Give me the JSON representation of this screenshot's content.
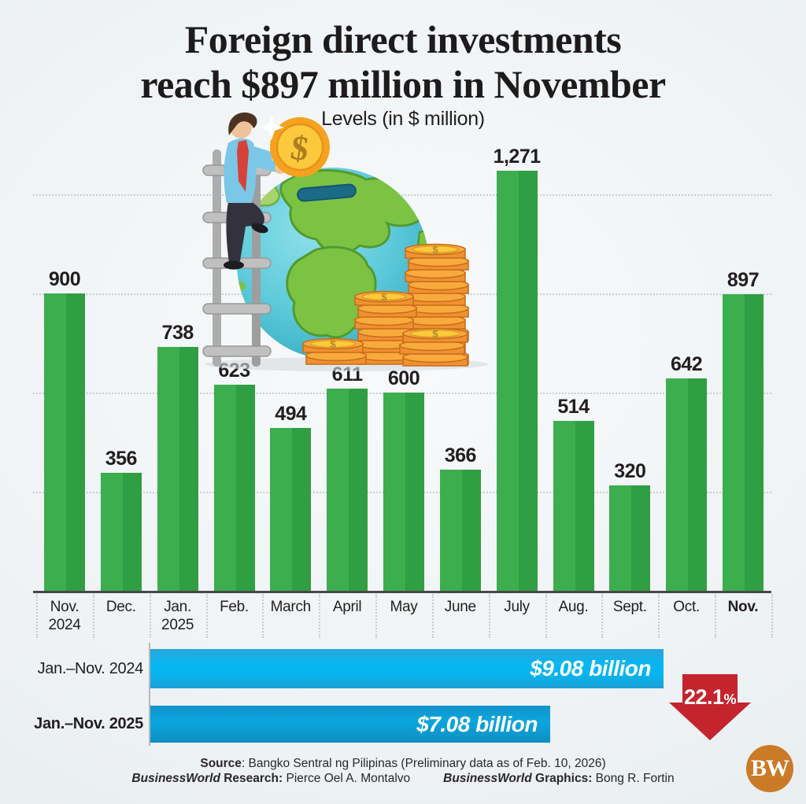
{
  "header": {
    "title": "Foreign direct investments\nreach $897 million in November",
    "subtitle": "Levels (in $ million)"
  },
  "chart_data": [
    {
      "type": "bar",
      "title": "Foreign direct investments reach $897 million in November",
      "unit_label": "Levels (in $ million)",
      "categories": [
        "Nov. 2024",
        "Dec.",
        "Jan. 2025",
        "Feb.",
        "March",
        "April",
        "May",
        "June",
        "July",
        "Aug.",
        "Sept.",
        "Oct.",
        "Nov."
      ],
      "category_display": [
        "Nov.\n2024",
        "Dec.",
        "Jan.\n2025",
        "Feb.",
        "March",
        "April",
        "May",
        "June",
        "July",
        "Aug.",
        "Sept.",
        "Oct.",
        "Nov."
      ],
      "values": [
        900,
        356,
        738,
        623,
        494,
        611,
        600,
        366,
        1271,
        514,
        320,
        642,
        897
      ],
      "value_labels": [
        "900",
        "356",
        "738",
        "623",
        "494",
        "611",
        "600",
        "366",
        "1,271",
        "514",
        "320",
        "642",
        "897"
      ],
      "emphasized_index": 12,
      "ylim": [
        0,
        1350
      ],
      "gridline_values": [
        300,
        600,
        900,
        1200
      ],
      "grid_style": "dotted horizontal",
      "bar_color": "#35a94a"
    },
    {
      "type": "bar",
      "orientation": "horizontal",
      "unit": "$ billion",
      "rows": [
        {
          "label": "Jan.–Nov. 2024",
          "value": 9.08,
          "value_label": "$9.08 billion",
          "color": "#1fa9e2",
          "bold_label": false
        },
        {
          "label": "Jan.–Nov. 2025",
          "value": 7.08,
          "value_label": "$7.08 billion",
          "color": "#0f93cc",
          "bold_label": true
        }
      ],
      "change": {
        "value_label": "22.1",
        "suffix": "%",
        "direction": "down",
        "color": "#c4242d"
      }
    }
  ],
  "footer": {
    "source_label": "Source",
    "source_text": ": Bangko Sentral ng Pilipinas (Preliminary data as of Feb. 10, 2026)",
    "research_brand": "BusinessWorld",
    "research_label": " Research:",
    "research_text": " Pierce Oel A. Montalvo",
    "graphics_brand": "BusinessWorld",
    "graphics_label": " Graphics:",
    "graphics_text": " Bong R. Fortin",
    "logo_text": "BW"
  }
}
